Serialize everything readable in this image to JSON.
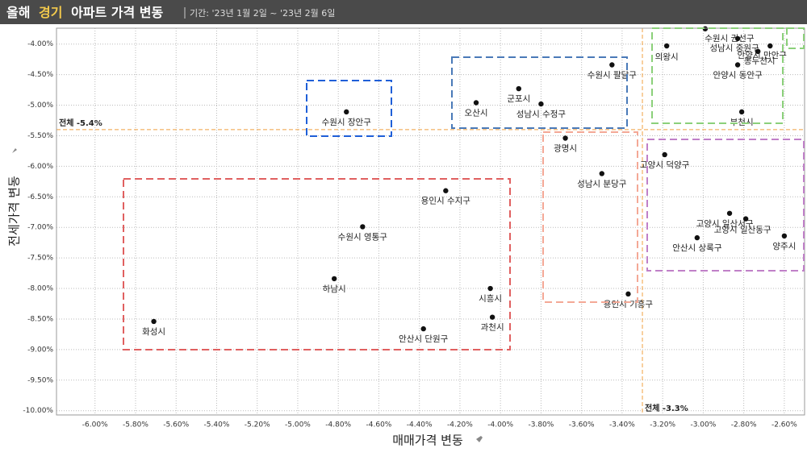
{
  "header": {
    "title_parts": [
      "올해",
      "경기",
      "아파트 가격 변동"
    ],
    "period": "기간: '23년 1월 2일 ~ '23년 2월 6일"
  },
  "chart_data": {
    "type": "scatter",
    "x_label": "매매가격 변동",
    "y_label": "전세가격 변동",
    "point_labels": [
      "수원시 권선구",
      "의왕시",
      "성남시 중원구",
      "동두천시",
      "안양시 만안구",
      "안양시 동안구",
      "부천시",
      "수원시 팔달구",
      "군포시",
      "성남시 수정구",
      "오산시",
      "수원시 장안구",
      "광명시",
      "성남시 분당구",
      "고양시 덕양구",
      "용인시 수지구",
      "수원시 영통구",
      "고양시 일산서구",
      "고양시 일산동구",
      "안산시 상록구",
      "양주시",
      "하남시",
      "시흥시",
      "용인시 기흥구",
      "과천시",
      "안산시 단원구",
      "화성시"
    ],
    "x": [
      -2.99,
      -3.18,
      -2.83,
      -2.73,
      -2.67,
      -2.83,
      -2.81,
      -3.45,
      -3.91,
      -3.8,
      -4.12,
      -4.76,
      -3.68,
      -3.5,
      -3.19,
      -4.27,
      -4.68,
      -2.87,
      -2.79,
      -3.03,
      -2.6,
      -4.82,
      -4.05,
      -3.37,
      -4.04,
      -4.38,
      -5.71
    ],
    "values": [
      -3.75,
      -4.03,
      -3.91,
      -4.12,
      -4.03,
      -4.34,
      -5.11,
      -4.34,
      -4.73,
      -4.98,
      -4.96,
      -5.11,
      -5.54,
      -6.12,
      -5.81,
      -6.4,
      -6.99,
      -6.77,
      -6.86,
      -7.17,
      -7.14,
      -7.84,
      -8.0,
      -8.09,
      -8.47,
      -8.66,
      -8.54
    ],
    "color": "#111111",
    "xlim": [
      -6.19,
      -2.5
    ],
    "ylim": [
      -10.07,
      -3.74
    ],
    "xticks": [
      {
        "value": -6.0,
        "label": "-6.00%"
      },
      {
        "value": -5.8,
        "label": "-5.80%"
      },
      {
        "value": -5.6,
        "label": "-5.60%"
      },
      {
        "value": -5.4,
        "label": "-5.40%"
      },
      {
        "value": -5.2,
        "label": "-5.20%"
      },
      {
        "value": -5.0,
        "label": "-5.00%"
      },
      {
        "value": -4.8,
        "label": "-4.80%"
      },
      {
        "value": -4.6,
        "label": "-4.60%"
      },
      {
        "value": -4.4,
        "label": "-4.40%"
      },
      {
        "value": -4.2,
        "label": "-4.20%"
      },
      {
        "value": -4.0,
        "label": "-4.00%"
      },
      {
        "value": -3.8,
        "label": "-3.80%"
      },
      {
        "value": -3.6,
        "label": "-3.60%"
      },
      {
        "value": -3.4,
        "label": "-3.40%"
      },
      {
        "value": -3.2,
        "label": "-3.20%"
      },
      {
        "value": -3.0,
        "label": "-3.00%"
      },
      {
        "value": -2.8,
        "label": "-2.80%"
      },
      {
        "value": -2.6,
        "label": "-2.60%"
      }
    ],
    "yticks": [
      {
        "value": -4.0,
        "label": "-4.00%"
      },
      {
        "value": -4.5,
        "label": "-4.50%"
      },
      {
        "value": -5.0,
        "label": "-5.00%"
      },
      {
        "value": -5.5,
        "label": "-5.50%"
      },
      {
        "value": -6.0,
        "label": "-6.00%"
      },
      {
        "value": -6.5,
        "label": "-6.50%"
      },
      {
        "value": -7.0,
        "label": "-7.00%"
      },
      {
        "value": -7.5,
        "label": "-7.50%"
      },
      {
        "value": -8.0,
        "label": "-8.00%"
      },
      {
        "value": -8.5,
        "label": "-8.50%"
      },
      {
        "value": -9.0,
        "label": "-9.00%"
      },
      {
        "value": -9.5,
        "label": "-9.50%"
      },
      {
        "value": -10.0,
        "label": "-10.00%"
      }
    ],
    "grid": true,
    "reference_lines": [
      {
        "axis": "y",
        "value": -5.4,
        "label": "전체 -5.4%"
      },
      {
        "axis": "x",
        "value": -3.3,
        "label": "전체 -3.3%"
      }
    ]
  }
}
